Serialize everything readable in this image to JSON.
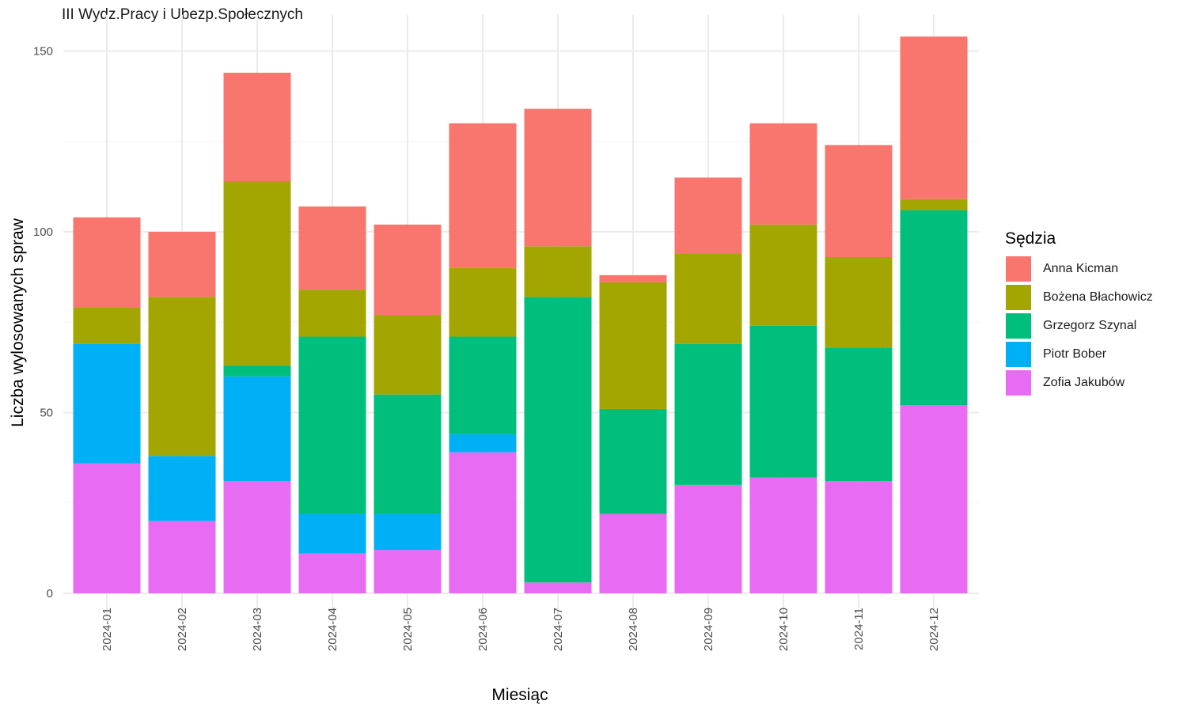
{
  "chart_data": {
    "type": "bar",
    "stacked": true,
    "facet_title": "III Wydz.Pracy i Ubezp.Społecznych",
    "xlabel": "Miesiąc",
    "ylabel": "Liczba wylosowanych spraw",
    "ylim": [
      0,
      160
    ],
    "yticks": [
      0,
      50,
      100,
      150
    ],
    "grid": true,
    "legend_position": "right",
    "legend_title": "Sędzia",
    "categories": [
      "2024-01",
      "2024-02",
      "2024-03",
      "2024-04",
      "2024-05",
      "2024-06",
      "2024-07",
      "2024-08",
      "2024-09",
      "2024-10",
      "2024-11",
      "2024-12"
    ],
    "series": [
      {
        "name": "Zofia Jakubów",
        "color": "#E76BF3",
        "values": [
          36,
          20,
          31,
          11,
          12,
          39,
          3,
          22,
          30,
          32,
          31,
          52
        ]
      },
      {
        "name": "Piotr Bober",
        "color": "#00B0F6",
        "values": [
          33,
          18,
          29,
          11,
          10,
          5,
          0,
          0,
          0,
          0,
          0,
          0
        ]
      },
      {
        "name": "Grzegorz Szynal",
        "color": "#00BF7D",
        "values": [
          0,
          0,
          3,
          49,
          33,
          27,
          79,
          29,
          39,
          42,
          37,
          54
        ]
      },
      {
        "name": "Bożena Błachowicz",
        "color": "#A3A500",
        "values": [
          10,
          44,
          51,
          13,
          22,
          19,
          14,
          35,
          25,
          28,
          25,
          3
        ]
      },
      {
        "name": "Anna Kicman",
        "color": "#F8766D",
        "values": [
          25,
          18,
          30,
          23,
          25,
          40,
          38,
          2,
          21,
          28,
          31,
          45
        ]
      }
    ],
    "legend_order": [
      "Anna Kicman",
      "Bożena Błachowicz",
      "Grzegorz Szynal",
      "Piotr Bober",
      "Zofia Jakubów"
    ]
  }
}
